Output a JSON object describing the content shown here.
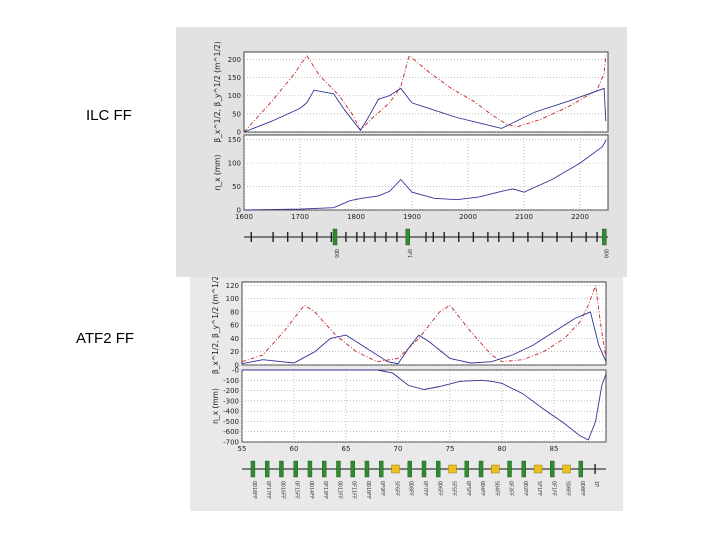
{
  "labels": {
    "ilc": "ILC FF",
    "atf2": "ATF2 FF"
  },
  "colors": {
    "beta_x": "#cc2222",
    "beta_y": "#333399",
    "eta_x": "#333399",
    "grid": "#9a9a9a",
    "quad": "#2e8b2e",
    "bend": "#e8c020",
    "dark": "#222222"
  },
  "chart_data": [
    {
      "id": "ilc-beta",
      "type": "line",
      "title": "",
      "xlabel": "",
      "ylabel": "β_x^1/2, β_y^1/2 (m^1/2)",
      "xlim": [
        1600,
        2250
      ],
      "ylim": [
        0,
        220
      ],
      "yticks": [
        "0",
        "50",
        "100",
        "150",
        "200"
      ],
      "ytick_values": [
        0,
        50,
        100,
        150,
        200
      ],
      "grid": true,
      "series": [
        {
          "name": "",
          "style": "red-dashed",
          "x": [
            1600,
            1650,
            1690,
            1712,
            1735,
            1770,
            1795,
            1808,
            1830,
            1860,
            1880,
            1895,
            1930,
            1970,
            2010,
            2040,
            2070,
            2090,
            2130,
            2180,
            2230,
            2243,
            2246
          ],
          "y": [
            0,
            85,
            160,
            210,
            155,
            100,
            45,
            5,
            40,
            80,
            125,
            210,
            165,
            120,
            85,
            50,
            20,
            15,
            35,
            70,
            115,
            160,
            210
          ]
        },
        {
          "name": "",
          "style": "blue-solid",
          "x": [
            1600,
            1650,
            1700,
            1712,
            1725,
            1760,
            1780,
            1800,
            1808,
            1820,
            1840,
            1860,
            1880,
            1900,
            1940,
            1980,
            2020,
            2060,
            2080,
            2120,
            2180,
            2243,
            2246
          ],
          "y": [
            0,
            30,
            65,
            80,
            115,
            105,
            60,
            20,
            5,
            35,
            90,
            100,
            120,
            80,
            60,
            40,
            25,
            10,
            25,
            55,
            85,
            120,
            30
          ]
        }
      ]
    },
    {
      "id": "ilc-eta",
      "type": "line",
      "title": "",
      "xlabel": "",
      "ylabel": "η_x (mm)",
      "xlim": [
        1600,
        2250
      ],
      "ylim": [
        0,
        160
      ],
      "yticks": [
        "0",
        "50",
        "100",
        "150"
      ],
      "ytick_values": [
        0,
        50,
        100,
        150
      ],
      "xticks": [
        "1600",
        "1700",
        "1800",
        "1900",
        "2000",
        "2100",
        "2200"
      ],
      "xtick_values": [
        1600,
        1700,
        1800,
        1900,
        2000,
        2100,
        2200
      ],
      "grid": true,
      "series": [
        {
          "name": "",
          "style": "blue-solid",
          "x": [
            1600,
            1700,
            1760,
            1790,
            1810,
            1840,
            1860,
            1880,
            1900,
            1940,
            1980,
            2020,
            2060,
            2080,
            2100,
            2150,
            2200,
            2240,
            2247
          ],
          "y": [
            0,
            2,
            5,
            20,
            25,
            30,
            40,
            65,
            38,
            25,
            22,
            28,
            40,
            45,
            38,
            65,
            100,
            135,
            150
          ]
        }
      ]
    },
    {
      "id": "atf2-beta",
      "type": "line",
      "title": "",
      "xlabel": "",
      "ylabel": "β_x^1/2, β_y^1/2 (m^1/2)",
      "xlim": [
        55,
        90
      ],
      "ylim": [
        0,
        125
      ],
      "yticks": [
        "0",
        "20",
        "40",
        "60",
        "80",
        "100",
        "120"
      ],
      "ytick_values": [
        0,
        20,
        40,
        60,
        80,
        100,
        120
      ],
      "grid": true,
      "series": [
        {
          "name": "",
          "style": "red-dashed",
          "x": [
            55,
            57,
            59,
            61,
            62,
            64,
            66,
            68,
            70,
            72,
            74,
            75,
            77,
            79,
            80,
            82,
            84,
            86,
            87.5,
            88.3,
            89,
            89.5,
            90
          ],
          "y": [
            5,
            15,
            50,
            90,
            80,
            45,
            20,
            5,
            10,
            40,
            80,
            90,
            50,
            15,
            5,
            8,
            20,
            40,
            65,
            90,
            120,
            60,
            10
          ]
        },
        {
          "name": "",
          "style": "blue-solid",
          "x": [
            55,
            57,
            60,
            62,
            63.5,
            65,
            67,
            69,
            70,
            71,
            72,
            73,
            75,
            77,
            79,
            81,
            83,
            85,
            87,
            88.5,
            89.3,
            90
          ],
          "y": [
            2,
            8,
            3,
            20,
            40,
            45,
            25,
            5,
            2,
            25,
            45,
            35,
            10,
            3,
            5,
            15,
            30,
            50,
            70,
            80,
            30,
            5
          ]
        }
      ]
    },
    {
      "id": "atf2-eta",
      "type": "line",
      "title": "",
      "xlabel": "",
      "ylabel": "η_x (mm)",
      "xlim": [
        55,
        90
      ],
      "ylim": [
        -700,
        0
      ],
      "yticks": [
        "-0",
        "-100",
        "-200",
        "-300",
        "-400",
        "-500",
        "-600",
        "-700"
      ],
      "ytick_values": [
        0,
        -100,
        -200,
        -300,
        -400,
        -500,
        -600,
        -700
      ],
      "xticks": [
        "55",
        "60",
        "65",
        "70",
        "75",
        "80",
        "85"
      ],
      "xtick_values": [
        55,
        60,
        65,
        70,
        75,
        80,
        85
      ],
      "grid": true,
      "series": [
        {
          "name": "",
          "style": "blue-solid",
          "x": [
            55,
            60,
            65,
            68,
            69.5,
            71,
            72.5,
            74,
            76,
            78,
            79,
            80,
            82,
            84,
            86,
            87.5,
            88.3,
            89,
            89.6,
            90
          ],
          "y": [
            0,
            0,
            0,
            0,
            -30,
            -150,
            -190,
            -160,
            -110,
            -100,
            -110,
            -130,
            -230,
            -380,
            -520,
            -640,
            -680,
            -500,
            -150,
            -40
          ]
        }
      ]
    }
  ],
  "lattice": {
    "ilc": {
      "labels": [
        "QD6",
        "QF1",
        "QD0"
      ]
    },
    "atf2": {
      "labels": [
        "QD18FF",
        "QF17FF",
        "QD16FF",
        "QF15FF",
        "QD14FF",
        "QF13FF",
        "QD12FF",
        "QF11FF",
        "QD10FF",
        "QF9FF",
        "SF6FF",
        "QD8FF",
        "QF7FF",
        "QD6FF",
        "SF5FF",
        "QF5FF",
        "QD4FF",
        "SD4FF",
        "QF3FF",
        "QD2FF",
        "SF1FF",
        "QF1FF",
        "SD0FF",
        "QD0FF",
        "IP"
      ]
    }
  }
}
